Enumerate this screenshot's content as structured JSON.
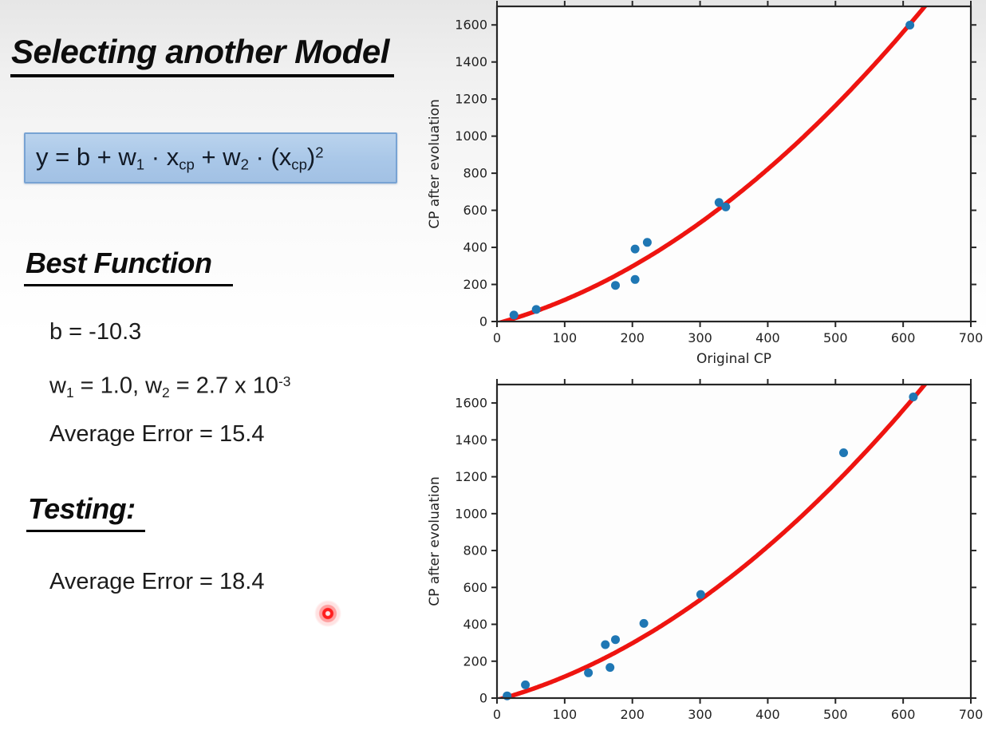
{
  "slide": {
    "title": "Selecting another Model",
    "formula": [
      {
        "t": "y = b + w"
      },
      {
        "t": "1",
        "s": "sub"
      },
      {
        "t": " · x"
      },
      {
        "t": "cp",
        "s": "sub"
      },
      {
        "t": " + w"
      },
      {
        "t": "2",
        "s": "sub"
      },
      {
        "t": " · (x"
      },
      {
        "t": "cp",
        "s": "sub"
      },
      {
        "t": ")"
      },
      {
        "t": "2",
        "s": "sup"
      }
    ],
    "best_function": {
      "heading": "Best Function",
      "b_line": "b = -10.3",
      "w_line": [
        {
          "t": "w"
        },
        {
          "t": "1",
          "s": "sub"
        },
        {
          "t": " = 1.0, w"
        },
        {
          "t": "2",
          "s": "sub"
        },
        {
          "t": " = 2.7 x 10"
        },
        {
          "t": "-3",
          "s": "sup"
        }
      ],
      "avg_error_line": "Average Error = 15.4"
    },
    "testing": {
      "heading": "Testing:",
      "avg_error_line": "Average Error = 18.4"
    }
  },
  "colors": {
    "formula_box_bg": "#a9c7e8",
    "formula_box_border": "#78a3d3",
    "heading_text": "#0d0d0d",
    "body_text": "#1c1c1c",
    "laser_red": "#ff1d1d",
    "point_blue": "#1f77b4",
    "curve_red": "#ee1410"
  },
  "chart_data": [
    {
      "type": "scatter",
      "title": "",
      "xlabel": "Original CP",
      "ylabel": "CP after evoluation",
      "xlim": [
        0,
        700
      ],
      "ylim": [
        0,
        1700
      ],
      "xticks": [
        0,
        100,
        200,
        300,
        400,
        500,
        600,
        700
      ],
      "yticks": [
        0,
        200,
        400,
        600,
        800,
        1000,
        1200,
        1400,
        1600
      ],
      "grid": false,
      "legend": null,
      "points": [
        [
          25,
          35
        ],
        [
          58,
          65
        ],
        [
          175,
          195
        ],
        [
          204,
          227
        ],
        [
          204,
          391
        ],
        [
          222,
          427
        ],
        [
          328,
          642
        ],
        [
          338,
          618
        ],
        [
          610,
          1599
        ]
      ],
      "fit": {
        "b": -10.3,
        "w1": 1.0,
        "w2": 0.0027
      },
      "point_color": "#1f77b4",
      "curve_color": "#ee1410"
    },
    {
      "type": "scatter",
      "title": "",
      "xlabel": "",
      "ylabel": "CP after evoluation",
      "xlim": [
        0,
        700
      ],
      "ylim": [
        0,
        1700
      ],
      "xticks": [
        0,
        100,
        200,
        300,
        400,
        500,
        600,
        700
      ],
      "yticks": [
        0,
        200,
        400,
        600,
        800,
        1000,
        1200,
        1400,
        1600
      ],
      "grid": false,
      "legend": null,
      "points": [
        [
          15,
          12
        ],
        [
          42,
          72
        ],
        [
          135,
          137
        ],
        [
          160,
          290
        ],
        [
          167,
          166
        ],
        [
          175,
          317
        ],
        [
          217,
          405
        ],
        [
          301,
          562
        ],
        [
          512,
          1330
        ],
        [
          615,
          1633
        ]
      ],
      "fit": {
        "b": -10.3,
        "w1": 1.0,
        "w2": 0.0027
      },
      "point_color": "#1f77b4",
      "curve_color": "#ee1410"
    }
  ]
}
